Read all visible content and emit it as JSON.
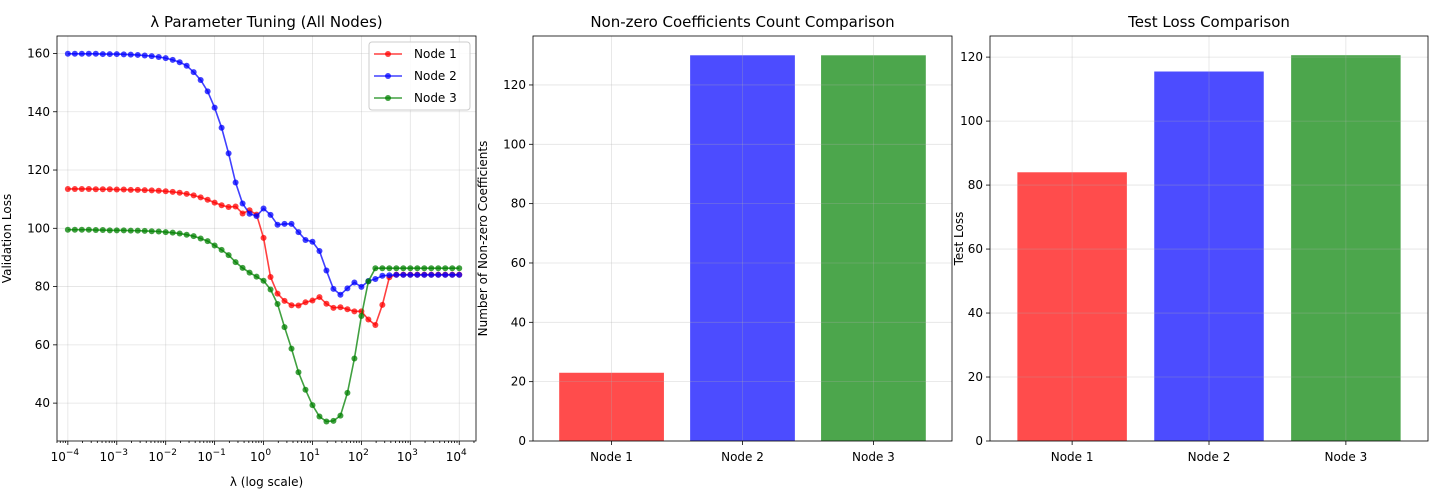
{
  "chart_data": [
    {
      "type": "line",
      "title": "λ Parameter Tuning (All Nodes)",
      "xlabel": "λ (log scale)",
      "ylabel": "Validation Loss",
      "xscale": "log",
      "xlim": [
        6e-05,
        22000
      ],
      "ylim": [
        27,
        166
      ],
      "x_ticks": [
        0.0001,
        0.001,
        0.01,
        0.1,
        1,
        10,
        100,
        1000,
        10000
      ],
      "x_tick_labels": [
        [
          "10",
          "−4"
        ],
        [
          "10",
          "−3"
        ],
        [
          "10",
          "−2"
        ],
        [
          "10",
          "−1"
        ],
        [
          "10",
          "0"
        ],
        [
          "10",
          "1"
        ],
        [
          "10",
          "2"
        ],
        [
          "10",
          "3"
        ],
        [
          "10",
          "4"
        ]
      ],
      "y_ticks": [
        40,
        60,
        80,
        100,
        120,
        140,
        160
      ],
      "grid": true,
      "legend": "top-right",
      "x": [
        0.0001,
        0.00013895,
        0.00019307,
        0.00026827,
        0.00037276,
        0.00051795,
        0.00071969,
        0.001,
        0.0013895,
        0.0019307,
        0.0026827,
        0.0037276,
        0.0051795,
        0.0071969,
        0.01,
        0.013895,
        0.019307,
        0.026827,
        0.037276,
        0.051795,
        0.071969,
        0.1,
        0.13895,
        0.19307,
        0.26827,
        0.37276,
        0.51795,
        0.71969,
        1,
        1.3895,
        1.9307,
        2.6827,
        3.7276,
        5.1795,
        7.1969,
        10,
        13.895,
        19.307,
        26.827,
        37.276,
        51.795,
        71.969,
        100,
        138.95,
        193.07,
        268.27,
        372.76,
        517.95,
        719.69,
        1000,
        1389.5,
        1930.7,
        2682.7,
        3727.6,
        5179.5,
        7196.9,
        10000
      ],
      "series": [
        {
          "name": "Node 1",
          "color": "#ff0000",
          "values": [
            113.5,
            113.5,
            113.5,
            113.5,
            113.4,
            113.4,
            113.4,
            113.3,
            113.3,
            113.2,
            113.2,
            113.1,
            113.0,
            112.9,
            112.7,
            112.5,
            112.2,
            111.8,
            111.3,
            110.6,
            109.8,
            108.8,
            107.9,
            107.3,
            107.5,
            105.1,
            106.2,
            104.7,
            96.7,
            83.3,
            77.6,
            75.1,
            73.6,
            73.5,
            74.6,
            75.2,
            76.4,
            74.1,
            72.7,
            72.9,
            72.2,
            71.5,
            71.5,
            68.7,
            66.8,
            73.7,
            83.2,
            84.1,
            84.1,
            84.1,
            84.1,
            84.1,
            84.1,
            84.1,
            84.1,
            84.1,
            84.1
          ]
        },
        {
          "name": "Node 2",
          "color": "#0000ff",
          "values": [
            159.9,
            159.9,
            159.9,
            159.9,
            159.9,
            159.8,
            159.8,
            159.8,
            159.7,
            159.6,
            159.5,
            159.3,
            159.1,
            158.8,
            158.4,
            157.8,
            157.0,
            155.8,
            153.6,
            150.9,
            147.0,
            141.4,
            134.5,
            125.7,
            115.7,
            108.5,
            105.0,
            104.2,
            106.8,
            104.6,
            101.2,
            101.5,
            101.5,
            98.7,
            96.0,
            95.4,
            92.2,
            85.5,
            79.2,
            77.2,
            79.4,
            81.4,
            79.9,
            81.9,
            82.6,
            83.7,
            83.9,
            84.0,
            84.0,
            84.0,
            84.0,
            84.0,
            84.0,
            84.0,
            84.0,
            84.0,
            84.0
          ]
        },
        {
          "name": "Node 3",
          "color": "#008000",
          "values": [
            99.5,
            99.5,
            99.5,
            99.5,
            99.4,
            99.4,
            99.3,
            99.3,
            99.3,
            99.2,
            99.2,
            99.1,
            99.0,
            98.9,
            98.7,
            98.5,
            98.2,
            97.8,
            97.3,
            96.5,
            95.6,
            94.1,
            92.6,
            90.8,
            88.4,
            86.4,
            84.8,
            83.4,
            82.0,
            79.0,
            74.0,
            66.1,
            58.7,
            50.6,
            44.6,
            39.3,
            35.4,
            33.7,
            33.9,
            35.7,
            43.5,
            55.3,
            69.9,
            81.8,
            86.3,
            86.3,
            86.3,
            86.3,
            86.3,
            86.3,
            86.3,
            86.3,
            86.3,
            86.3,
            86.3,
            86.3,
            86.3
          ]
        }
      ]
    },
    {
      "type": "bar",
      "title": "Non-zero Coefficients Count Comparison",
      "xlabel": "",
      "ylabel": "Number of Non-zero Coefficients",
      "categories": [
        "Node 1",
        "Node 2",
        "Node 3"
      ],
      "values": [
        23,
        130,
        130
      ],
      "colors": [
        "#ff0000",
        "#0000ff",
        "#008000"
      ],
      "ylim": [
        0,
        136.5
      ],
      "y_ticks": [
        0,
        20,
        40,
        60,
        80,
        100,
        120
      ],
      "grid": true
    },
    {
      "type": "bar",
      "title": "Test Loss Comparison",
      "xlabel": "",
      "ylabel": "Test Loss",
      "categories": [
        "Node 1",
        "Node 2",
        "Node 3"
      ],
      "values": [
        84,
        115.5,
        120.6
      ],
      "colors": [
        "#ff0000",
        "#0000ff",
        "#008000"
      ],
      "ylim": [
        0,
        126.6
      ],
      "y_ticks": [
        0,
        20,
        40,
        60,
        80,
        100,
        120
      ],
      "grid": true
    }
  ]
}
